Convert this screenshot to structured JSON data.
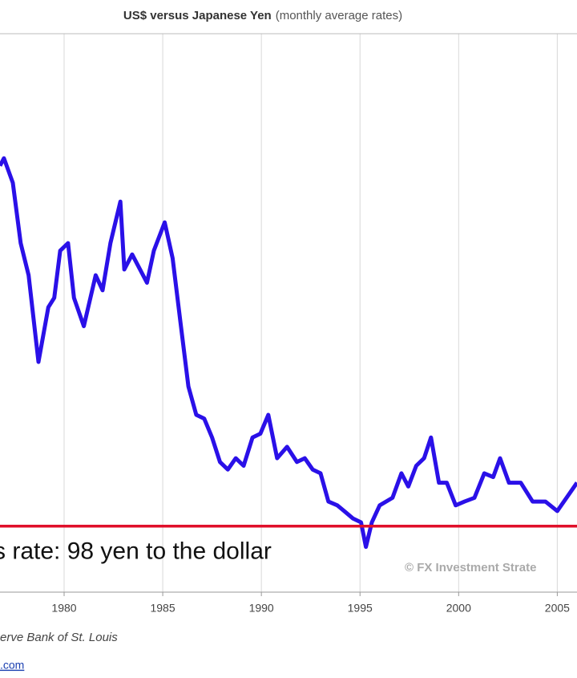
{
  "chart_data": {
    "type": "line",
    "title": "US$ versus Japanese Yen",
    "subtitle": "(monthly average rates)",
    "color": "#2a10e8",
    "x": [
      1976.75,
      1976.95,
      1977.4,
      1977.8,
      1978.2,
      1978.7,
      1979.2,
      1979.5,
      1979.8,
      1980.2,
      1980.5,
      1981.0,
      1981.6,
      1981.95,
      1982.35,
      1982.85,
      1983.05,
      1983.45,
      1983.85,
      1984.2,
      1984.55,
      1985.1,
      1985.5,
      1985.9,
      1986.3,
      1986.7,
      1987.1,
      1987.5,
      1987.9,
      1988.3,
      1988.7,
      1989.1,
      1989.55,
      1989.95,
      1990.35,
      1990.8,
      1991.3,
      1991.8,
      1992.2,
      1992.6,
      1993.0,
      1993.4,
      1993.85,
      1994.2,
      1994.65,
      1995.05,
      1995.3,
      1995.6,
      1996.0,
      1996.65,
      1997.1,
      1997.45,
      1997.85,
      1998.25,
      1998.6,
      1999.0,
      1999.4,
      1999.85,
      2000.3,
      2000.8,
      2001.3,
      2001.75,
      2002.1,
      2002.55,
      2003.15,
      2003.75,
      2004.4,
      2005.0,
      2005.6,
      2006.0
    ],
    "values": [
      289,
      293,
      280,
      248,
      231,
      185,
      214,
      219,
      244,
      248,
      219,
      204,
      231,
      223,
      248,
      270,
      234,
      242,
      234,
      227,
      244,
      259,
      240,
      206,
      172,
      157,
      155,
      145,
      132,
      128,
      134,
      130,
      145,
      147,
      157,
      134,
      140,
      132,
      134,
      128,
      126,
      111,
      109,
      106,
      102,
      100,
      87,
      100,
      109,
      113,
      126,
      119,
      130,
      134,
      145,
      121,
      121,
      109,
      111,
      113,
      126,
      124,
      134,
      121,
      121,
      111,
      111,
      106,
      115,
      121
    ],
    "xlim": [
      1976.75,
      2006
    ],
    "xticks": [
      1980,
      1985,
      1990,
      1995,
      2000,
      2005
    ],
    "ylim": [
      63,
      359
    ],
    "grid": true,
    "reference_line": {
      "value": 98,
      "label": "s rate: 98 yen to the dollar",
      "color": "#e0102a"
    },
    "watermark": "© FX Investment Strate",
    "source": "erve Bank of St. Louis",
    "link": ".com"
  }
}
